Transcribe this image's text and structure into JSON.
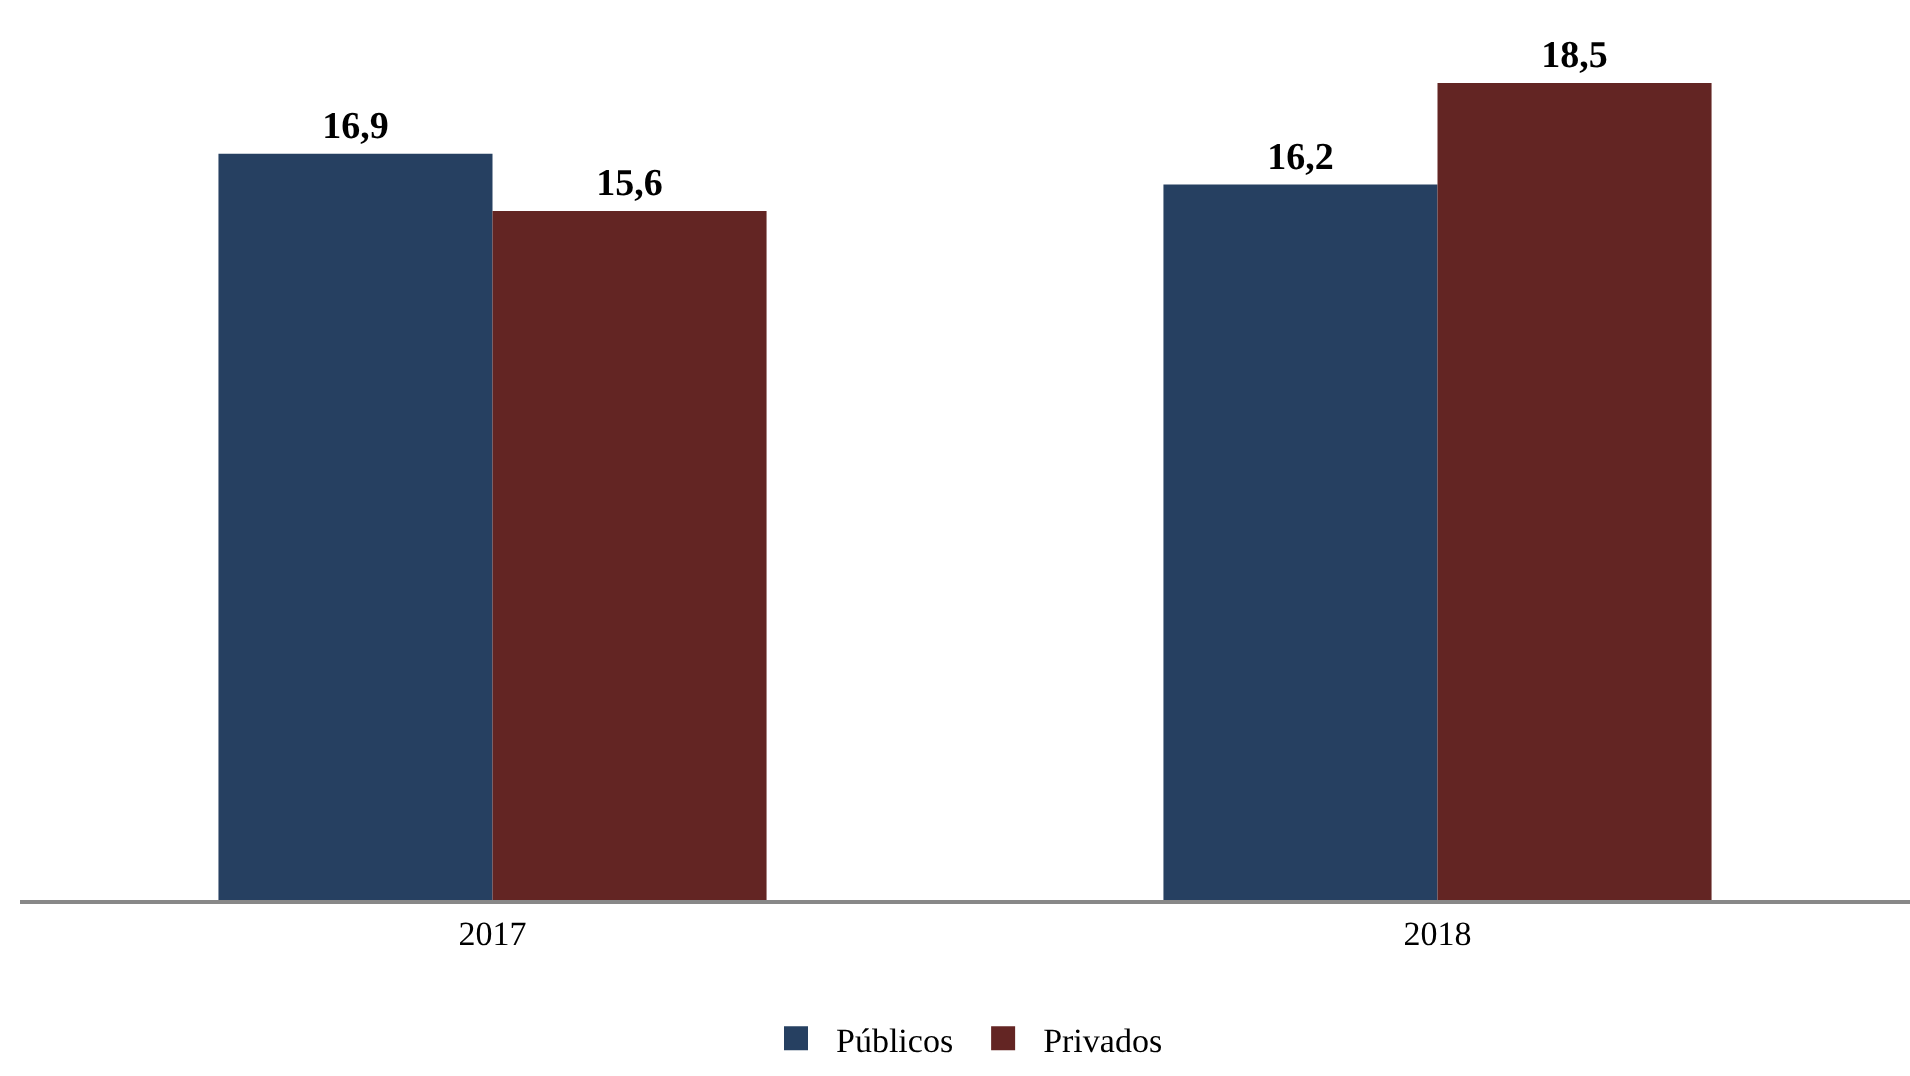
{
  "chart_data": {
    "type": "bar",
    "categories": [
      "2017",
      "2018"
    ],
    "series": [
      {
        "name": "Públicos",
        "color": "#264061",
        "values": [
          16.9,
          16.2
        ],
        "value_labels": [
          "16,9",
          "16,2"
        ]
      },
      {
        "name": "Privados",
        "color": "#632523",
        "values": [
          15.6,
          18.5
        ],
        "value_labels": [
          "15,6",
          "18,5"
        ]
      }
    ],
    "tick_labels": "x",
    "grid": false,
    "legend": "bottom"
  }
}
